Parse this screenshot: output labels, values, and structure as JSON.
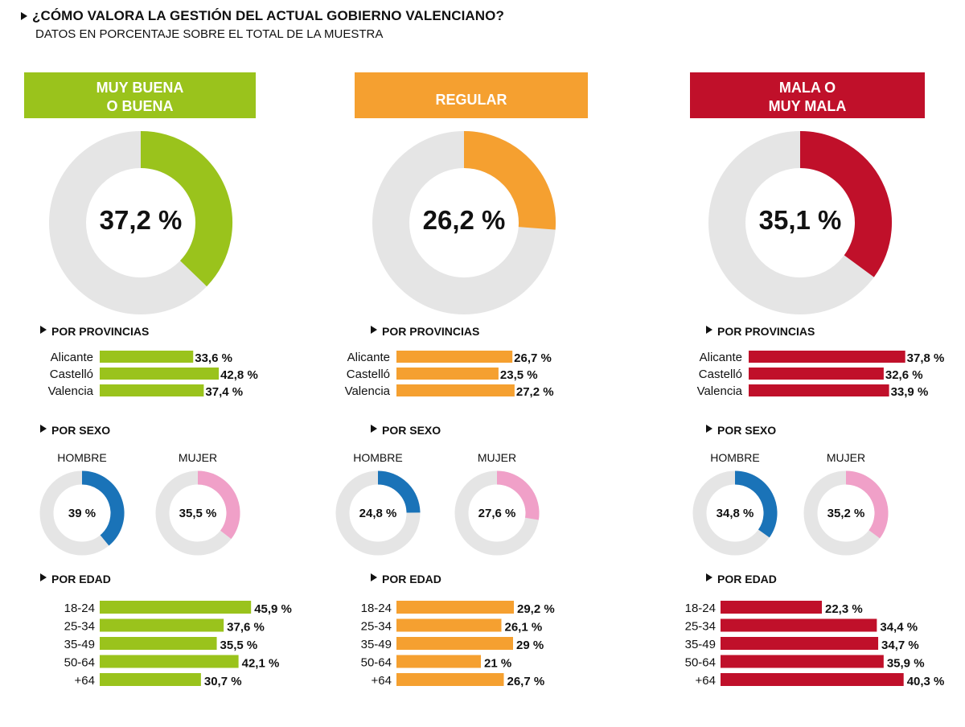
{
  "header": {
    "title": "¿CÓMO VALORA LA GESTIÓN DEL  ACTUAL GOBIERNO VALENCIANO?",
    "subtitle": "DATOS EN PORCENTAJE SOBRE EL TOTAL DE LA MUESTRA"
  },
  "colors": {
    "ring_bg": "#e5e5e5",
    "male": "#1a73b8",
    "female": "#f0a0c8",
    "text": "#111111"
  },
  "chart_data": [
    {
      "type": "pie",
      "category": [
        "MUY BUENA",
        "O BUENA"
      ],
      "color": "#9ac31c",
      "total": {
        "value": 37.2,
        "label": "37,2 %"
      },
      "provincias_title": "POR PROVINCIAS",
      "provincias": [
        {
          "name": "Alicante",
          "value": 33.6,
          "label": "33,6 %"
        },
        {
          "name": "Castelló",
          "value": 42.8,
          "label": "42,8 %"
        },
        {
          "name": "Valencia",
          "value": 37.4,
          "label": "37,4 %"
        }
      ],
      "sexo_title": "POR SEXO",
      "sexo": [
        {
          "name": "HOMBRE",
          "value": 39,
          "label": "39 %"
        },
        {
          "name": "MUJER",
          "value": 35.5,
          "label": "35,5 %"
        }
      ],
      "edad_title": "POR EDAD",
      "edad": [
        {
          "name": "18-24",
          "value": 45.9,
          "label": "45,9 %"
        },
        {
          "name": "25-34",
          "value": 37.6,
          "label": "37,6 %"
        },
        {
          "name": "35-49",
          "value": 35.5,
          "label": "35,5 %"
        },
        {
          "name": "50-64",
          "value": 42.1,
          "label": "42,1 %"
        },
        {
          "name": "+64",
          "value": 30.7,
          "label": "30,7 %"
        }
      ]
    },
    {
      "type": "pie",
      "category": [
        "REGULAR"
      ],
      "color": "#f5a030",
      "total": {
        "value": 26.2,
        "label": "26,2 %"
      },
      "provincias_title": "POR PROVINCIAS",
      "provincias": [
        {
          "name": "Alicante",
          "value": 26.7,
          "label": "26,7 %"
        },
        {
          "name": "Castelló",
          "value": 23.5,
          "label": "23,5 %"
        },
        {
          "name": "Valencia",
          "value": 27.2,
          "label": "27,2 %"
        }
      ],
      "sexo_title": "POR SEXO",
      "sexo": [
        {
          "name": "HOMBRE",
          "value": 24.8,
          "label": "24,8 %"
        },
        {
          "name": "MUJER",
          "value": 27.6,
          "label": "27,6 %"
        }
      ],
      "edad_title": "POR EDAD",
      "edad": [
        {
          "name": "18-24",
          "value": 29.2,
          "label": "29,2 %"
        },
        {
          "name": "25-34",
          "value": 26.1,
          "label": "26,1 %"
        },
        {
          "name": "35-49",
          "value": 29,
          "label": "29 %"
        },
        {
          "name": "50-64",
          "value": 21,
          "label": "21 %"
        },
        {
          "name": "+64",
          "value": 26.7,
          "label": "26,7 %"
        }
      ]
    },
    {
      "type": "pie",
      "category": [
        "MALA O",
        "MUY MALA"
      ],
      "color": "#c0102a",
      "total": {
        "value": 35.1,
        "label": "35,1 %"
      },
      "provincias_title": "POR PROVINCIAS",
      "provincias": [
        {
          "name": "Alicante",
          "value": 37.8,
          "label": "37,8 %"
        },
        {
          "name": "Castelló",
          "value": 32.6,
          "label": "32,6 %"
        },
        {
          "name": "Valencia",
          "value": 33.9,
          "label": "33,9 %"
        }
      ],
      "sexo_title": "POR SEXO",
      "sexo": [
        {
          "name": "HOMBRE",
          "value": 34.8,
          "label": "34,8 %"
        },
        {
          "name": "MUJER",
          "value": 35.2,
          "label": "35,2 %"
        }
      ],
      "edad_title": "POR EDAD",
      "edad": [
        {
          "name": "18-24",
          "value": 22.3,
          "label": "22,3 %"
        },
        {
          "name": "25-34",
          "value": 34.4,
          "label": "34,4 %"
        },
        {
          "name": "35-49",
          "value": 34.7,
          "label": "34,7 %"
        },
        {
          "name": "50-64",
          "value": 35.9,
          "label": "35,9 %"
        },
        {
          "name": "+64",
          "value": 40.3,
          "label": "40,3 %"
        }
      ]
    }
  ]
}
